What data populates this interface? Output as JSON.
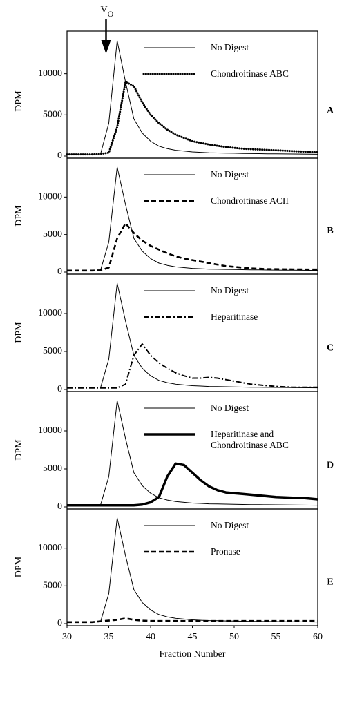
{
  "chart_data": [
    {
      "type": "line",
      "panel_label": "A",
      "ylabel": "DPM",
      "annotation": {
        "text": "V",
        "subscript": "O",
        "x": 35
      },
      "x": [
        30,
        31,
        32,
        33,
        34,
        35,
        36,
        37,
        38,
        39,
        40,
        41,
        42,
        43,
        44,
        45,
        46,
        47,
        48,
        49,
        50,
        51,
        52,
        53,
        54,
        55,
        56,
        57,
        58,
        59,
        60
      ],
      "xlim": [
        30,
        60
      ],
      "ylim": [
        0,
        15000
      ],
      "yticks": [
        0,
        5000,
        10000
      ],
      "series": [
        {
          "name": "No Digest",
          "color": "#000000",
          "linestyle": "thin",
          "values": [
            null,
            null,
            null,
            null,
            200,
            4000,
            14000,
            9000,
            4500,
            2800,
            1800,
            1200,
            900,
            700,
            600,
            500,
            450,
            400,
            380,
            360,
            340,
            320,
            300,
            290,
            280,
            270,
            260,
            250,
            240,
            230,
            220
          ]
        },
        {
          "name": "Chondroitinase ABC",
          "color": "#000000",
          "linestyle": "dotted",
          "values": [
            200,
            200,
            200,
            200,
            250,
            400,
            3500,
            9000,
            8500,
            6500,
            5000,
            4000,
            3200,
            2600,
            2200,
            1800,
            1600,
            1400,
            1250,
            1100,
            1000,
            900,
            850,
            800,
            750,
            700,
            650,
            600,
            550,
            500,
            450
          ]
        }
      ]
    },
    {
      "type": "line",
      "panel_label": "B",
      "ylabel": "DPM",
      "x": [
        30,
        31,
        32,
        33,
        34,
        35,
        36,
        37,
        38,
        39,
        40,
        41,
        42,
        43,
        44,
        45,
        46,
        47,
        48,
        49,
        50,
        51,
        52,
        53,
        54,
        55,
        56,
        57,
        58,
        59,
        60
      ],
      "xlim": [
        30,
        60
      ],
      "ylim": [
        0,
        15000
      ],
      "yticks": [
        0,
        5000,
        10000
      ],
      "series": [
        {
          "name": "No Digest",
          "color": "#000000",
          "linestyle": "thin",
          "values": [
            null,
            null,
            null,
            null,
            200,
            4000,
            14000,
            9000,
            4500,
            2800,
            1800,
            1200,
            900,
            700,
            600,
            500,
            450,
            400,
            380,
            360,
            340,
            320,
            300,
            290,
            280,
            270,
            260,
            250,
            240,
            230,
            220
          ]
        },
        {
          "name": "Chondroitinase ACII",
          "color": "#000000",
          "linestyle": "dashed",
          "values": [
            200,
            200,
            200,
            200,
            250,
            600,
            4500,
            6500,
            5200,
            4200,
            3500,
            3000,
            2500,
            2100,
            1800,
            1600,
            1400,
            1200,
            1000,
            800,
            700,
            600,
            500,
            450,
            400,
            400,
            380,
            370,
            360,
            350,
            350
          ]
        }
      ]
    },
    {
      "type": "line",
      "panel_label": "C",
      "ylabel": "DPM",
      "x": [
        30,
        31,
        32,
        33,
        34,
        35,
        36,
        37,
        38,
        39,
        40,
        41,
        42,
        43,
        44,
        45,
        46,
        47,
        48,
        49,
        50,
        51,
        52,
        53,
        54,
        55,
        56,
        57,
        58,
        59,
        60
      ],
      "xlim": [
        30,
        60
      ],
      "ylim": [
        0,
        15000
      ],
      "yticks": [
        0,
        5000,
        10000
      ],
      "series": [
        {
          "name": "No Digest",
          "color": "#000000",
          "linestyle": "thin",
          "values": [
            null,
            null,
            null,
            null,
            200,
            4000,
            14000,
            9000,
            4500,
            2800,
            1800,
            1200,
            900,
            700,
            600,
            500,
            450,
            400,
            380,
            360,
            340,
            320,
            300,
            290,
            280,
            270,
            260,
            250,
            240,
            230,
            220
          ]
        },
        {
          "name": "Heparitinase",
          "color": "#000000",
          "linestyle": "dashdot",
          "values": [
            200,
            200,
            200,
            200,
            200,
            200,
            200,
            700,
            4500,
            6000,
            4500,
            3500,
            2800,
            2200,
            1800,
            1500,
            1500,
            1600,
            1500,
            1300,
            1100,
            900,
            700,
            600,
            500,
            400,
            350,
            300,
            300,
            300,
            300
          ]
        }
      ]
    },
    {
      "type": "line",
      "panel_label": "D",
      "ylabel": "DPM",
      "x": [
        30,
        31,
        32,
        33,
        34,
        35,
        36,
        37,
        38,
        39,
        40,
        41,
        42,
        43,
        44,
        45,
        46,
        47,
        48,
        49,
        50,
        51,
        52,
        53,
        54,
        55,
        56,
        57,
        58,
        59,
        60
      ],
      "xlim": [
        30,
        60
      ],
      "ylim": [
        0,
        15000
      ],
      "yticks": [
        0,
        5000,
        10000
      ],
      "series": [
        {
          "name": "No Digest",
          "color": "#000000",
          "linestyle": "thin",
          "values": [
            null,
            null,
            null,
            null,
            200,
            4000,
            14000,
            9000,
            4500,
            2800,
            1800,
            1200,
            900,
            700,
            600,
            500,
            450,
            400,
            380,
            360,
            340,
            320,
            300,
            290,
            280,
            270,
            260,
            250,
            240,
            230,
            220
          ]
        },
        {
          "name": "Heparitinase and\nChondroitinase ABC",
          "color": "#000000",
          "linestyle": "bold",
          "values": [
            200,
            200,
            200,
            200,
            200,
            200,
            200,
            200,
            200,
            300,
            600,
            1300,
            4000,
            5700,
            5500,
            4500,
            3500,
            2700,
            2200,
            1900,
            1800,
            1700,
            1600,
            1500,
            1400,
            1300,
            1250,
            1200,
            1200,
            1100,
            1000
          ]
        }
      ]
    },
    {
      "type": "line",
      "panel_label": "E",
      "ylabel": "DPM",
      "xlabel": "Fraction Number",
      "x": [
        30,
        31,
        32,
        33,
        34,
        35,
        36,
        37,
        38,
        39,
        40,
        41,
        42,
        43,
        44,
        45,
        46,
        47,
        48,
        49,
        50,
        51,
        52,
        53,
        54,
        55,
        56,
        57,
        58,
        59,
        60
      ],
      "xlim": [
        30,
        60
      ],
      "ylim": [
        0,
        15000
      ],
      "yticks": [
        0,
        5000,
        10000
      ],
      "xticks": [
        30,
        35,
        40,
        45,
        50,
        55,
        60
      ],
      "series": [
        {
          "name": "No Digest",
          "color": "#000000",
          "linestyle": "thin",
          "values": [
            null,
            null,
            null,
            null,
            200,
            4000,
            14000,
            9000,
            4500,
            2800,
            1800,
            1200,
            900,
            700,
            600,
            500,
            450,
            400,
            380,
            360,
            340,
            320,
            300,
            290,
            280,
            270,
            260,
            250,
            240,
            230,
            220
          ]
        },
        {
          "name": "Pronase",
          "color": "#000000",
          "linestyle": "dashed",
          "values": [
            200,
            200,
            200,
            200,
            300,
            400,
            500,
            700,
            500,
            400,
            350,
            350,
            350,
            350,
            350,
            350,
            350,
            350,
            350,
            350,
            350,
            350,
            350,
            350,
            350,
            350,
            350,
            350,
            350,
            350,
            350
          ]
        }
      ]
    }
  ]
}
